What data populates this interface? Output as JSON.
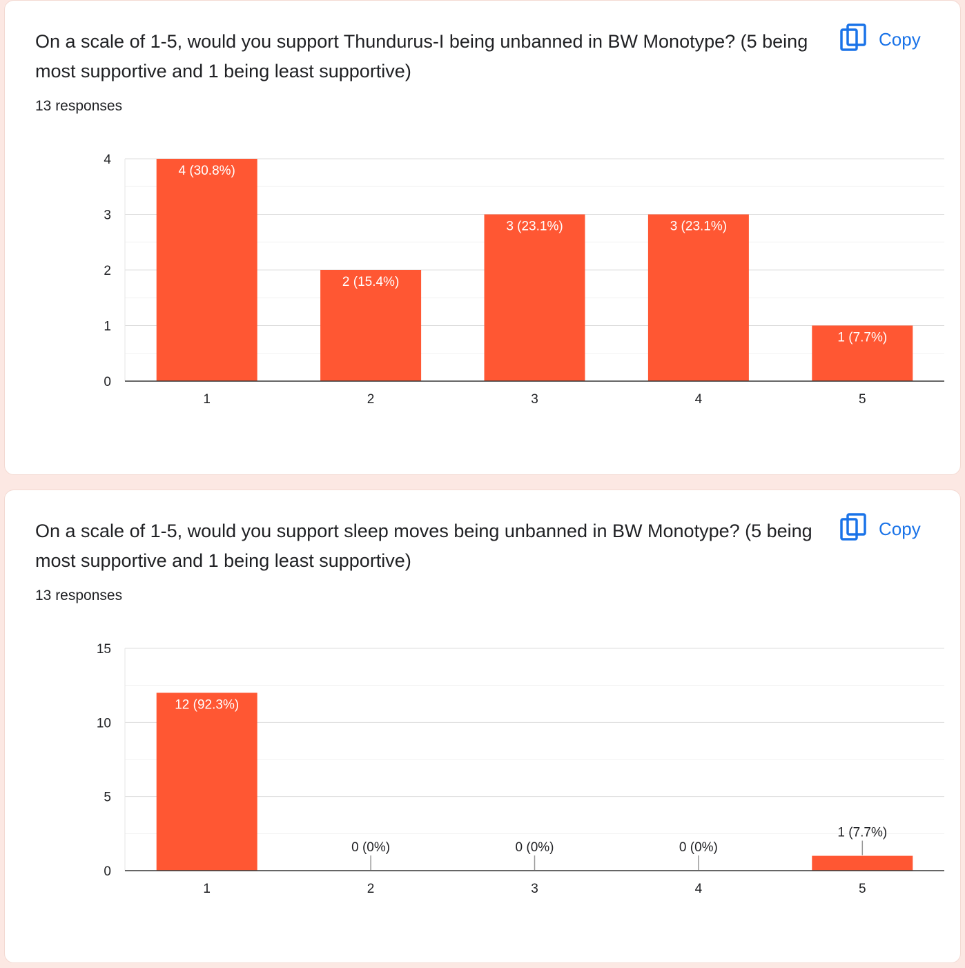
{
  "accent_color": "#ff5733",
  "link_color": "#1a73e8",
  "questions": [
    {
      "question": "On a scale of 1-5, would you support Thundurus-I being unbanned in BW Monotype? (5 being most supportive and 1 being least supportive)",
      "responses": "13 responses",
      "copy_label": "Copy",
      "copy_icon": "copy-icon"
    },
    {
      "question": "On a scale of 1-5, would you support sleep moves being unbanned in BW Monotype? (5 being most supportive and 1 being least supportive)",
      "responses": "13 responses",
      "copy_label": "Copy",
      "copy_icon": "copy-icon"
    }
  ],
  "chart_data": [
    {
      "type": "bar",
      "categories": [
        "1",
        "2",
        "3",
        "4",
        "5"
      ],
      "values": [
        4,
        2,
        3,
        3,
        1
      ],
      "data_labels": [
        "4 (30.8%)",
        "2 (15.4%)",
        "3 (23.1%)",
        "3 (23.1%)",
        "1 (7.7%)"
      ],
      "yticks": [
        0,
        1,
        2,
        3,
        4
      ],
      "ylim": [
        0,
        4
      ],
      "grid": true,
      "color": "#ff5733"
    },
    {
      "type": "bar",
      "categories": [
        "1",
        "2",
        "3",
        "4",
        "5"
      ],
      "values": [
        12,
        0,
        0,
        0,
        1
      ],
      "data_labels": [
        "12 (92.3%)",
        "0 (0%)",
        "0 (0%)",
        "0 (0%)",
        "1 (7.7%)"
      ],
      "yticks": [
        0,
        5,
        10,
        15
      ],
      "ylim": [
        0,
        15
      ],
      "grid": true,
      "color": "#ff5733"
    }
  ]
}
